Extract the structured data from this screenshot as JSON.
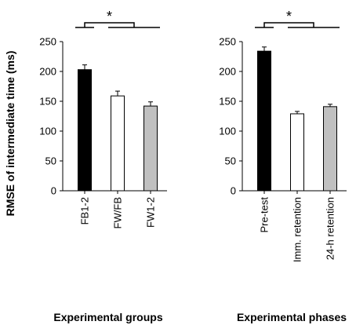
{
  "figure": {
    "ylabel": "RMSE of intermediate time (ms)"
  },
  "chart_data": [
    {
      "type": "bar",
      "xlabel": "Experimental groups",
      "ylabel": "RMSE of intermediate time (ms)",
      "ylim": [
        0,
        250
      ],
      "yticks": [
        0,
        50,
        100,
        150,
        200,
        250
      ],
      "categories": [
        "FB1-2",
        "FW/FB",
        "FW1-2"
      ],
      "values": [
        203,
        159,
        142
      ],
      "errors": [
        8,
        8,
        7
      ],
      "bar_colors": [
        "#000000",
        "#ffffff",
        "#c0c0c0"
      ],
      "significance": {
        "label": "*",
        "from": 0,
        "to": [
          1,
          2
        ]
      },
      "grid": false,
      "legend": "none"
    },
    {
      "type": "bar",
      "xlabel": "Experimental phases",
      "ylabel": "",
      "ylim": [
        0,
        250
      ],
      "yticks": [
        0,
        50,
        100,
        150,
        200,
        250
      ],
      "categories": [
        "Pre-test",
        "Imm. retention",
        "24-h retention"
      ],
      "values": [
        234,
        129,
        141
      ],
      "errors": [
        7,
        4,
        4
      ],
      "bar_colors": [
        "#000000",
        "#ffffff",
        "#c0c0c0"
      ],
      "significance": {
        "label": "*",
        "from": 0,
        "to": [
          1,
          2
        ]
      },
      "grid": false,
      "legend": "none"
    }
  ]
}
